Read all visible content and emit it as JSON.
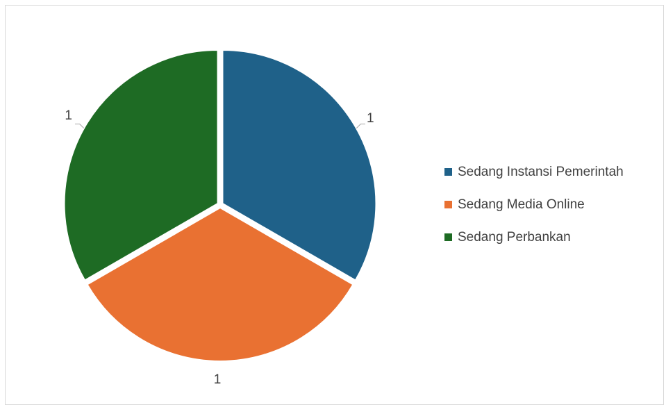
{
  "chart_data": {
    "type": "pie",
    "categories": [
      "Sedang Instansi Pemerintah",
      "Sedang Media Online",
      "Sedang Perbankan"
    ],
    "values": [
      1,
      1,
      1
    ],
    "data_labels": [
      "1",
      "1",
      "1"
    ],
    "colors": [
      "#1f6189",
      "#e97132",
      "#1e6b24"
    ],
    "legend_position": "right",
    "title": ""
  }
}
